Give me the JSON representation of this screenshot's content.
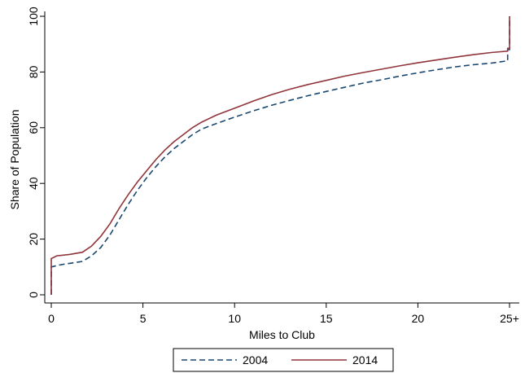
{
  "chart_data": {
    "type": "line",
    "xlabel": "Miles to Club",
    "ylabel": "Share of Population",
    "xlim": [
      0,
      25
    ],
    "ylim": [
      0,
      100
    ],
    "x_ticks": [
      {
        "value": 0,
        "label": "0"
      },
      {
        "value": 5,
        "label": "5"
      },
      {
        "value": 10,
        "label": "10"
      },
      {
        "value": 15,
        "label": "15"
      },
      {
        "value": 20,
        "label": "20"
      },
      {
        "value": 25,
        "label": "25+"
      }
    ],
    "y_ticks": [
      {
        "value": 0,
        "label": "0"
      },
      {
        "value": 20,
        "label": "20"
      },
      {
        "value": 40,
        "label": "40"
      },
      {
        "value": 60,
        "label": "60"
      },
      {
        "value": 80,
        "label": "80"
      },
      {
        "value": 100,
        "label": "100"
      }
    ],
    "grid": false,
    "legend_position": "bottom",
    "series": [
      {
        "name": "2004",
        "color": "#1a476f",
        "dash": "dashed",
        "points": [
          [
            0,
            0
          ],
          [
            0,
            10
          ],
          [
            0.5,
            10.8
          ],
          [
            1,
            11.3
          ],
          [
            1.7,
            12
          ],
          [
            2.2,
            14
          ],
          [
            2.7,
            17
          ],
          [
            3.2,
            21.5
          ],
          [
            3.7,
            27
          ],
          [
            4.2,
            32.5
          ],
          [
            4.7,
            37.5
          ],
          [
            5.2,
            42
          ],
          [
            5.7,
            46
          ],
          [
            6.2,
            49.5
          ],
          [
            6.7,
            52.5
          ],
          [
            7.2,
            55
          ],
          [
            7.7,
            57.5
          ],
          [
            8.2,
            59.5
          ],
          [
            9,
            61.5
          ],
          [
            10,
            63.8
          ],
          [
            11,
            66
          ],
          [
            12,
            68
          ],
          [
            13,
            69.8
          ],
          [
            14,
            71.5
          ],
          [
            15,
            73
          ],
          [
            16,
            74.5
          ],
          [
            17,
            76
          ],
          [
            18,
            77.2
          ],
          [
            19,
            78.5
          ],
          [
            20,
            79.7
          ],
          [
            21,
            80.8
          ],
          [
            22,
            81.8
          ],
          [
            23,
            82.6
          ],
          [
            24,
            83.2
          ],
          [
            24.9,
            84
          ],
          [
            24.9,
            88
          ],
          [
            25,
            88
          ],
          [
            25,
            100
          ]
        ]
      },
      {
        "name": "2014",
        "color": "#90353b",
        "dash": "solid",
        "points": [
          [
            0,
            0
          ],
          [
            0,
            13
          ],
          [
            0.3,
            14
          ],
          [
            1,
            14.5
          ],
          [
            1.7,
            15.3
          ],
          [
            2.2,
            17.5
          ],
          [
            2.7,
            21
          ],
          [
            3.2,
            25.5
          ],
          [
            3.7,
            31
          ],
          [
            4.2,
            36
          ],
          [
            4.7,
            40.5
          ],
          [
            5.2,
            44.5
          ],
          [
            5.7,
            48.5
          ],
          [
            6.2,
            52
          ],
          [
            6.7,
            55
          ],
          [
            7.2,
            57.5
          ],
          [
            7.7,
            60
          ],
          [
            8.2,
            62
          ],
          [
            9,
            64.5
          ],
          [
            10,
            67
          ],
          [
            11,
            69.5
          ],
          [
            12,
            71.8
          ],
          [
            13,
            73.8
          ],
          [
            14,
            75.5
          ],
          [
            15,
            77
          ],
          [
            16,
            78.5
          ],
          [
            17,
            79.8
          ],
          [
            18,
            81
          ],
          [
            19,
            82.2
          ],
          [
            20,
            83.3
          ],
          [
            21,
            84.3
          ],
          [
            22,
            85.3
          ],
          [
            23,
            86.2
          ],
          [
            24,
            87
          ],
          [
            24.9,
            87.5
          ],
          [
            24.9,
            88.5
          ],
          [
            25,
            88.5
          ],
          [
            25,
            100
          ]
        ]
      }
    ]
  }
}
